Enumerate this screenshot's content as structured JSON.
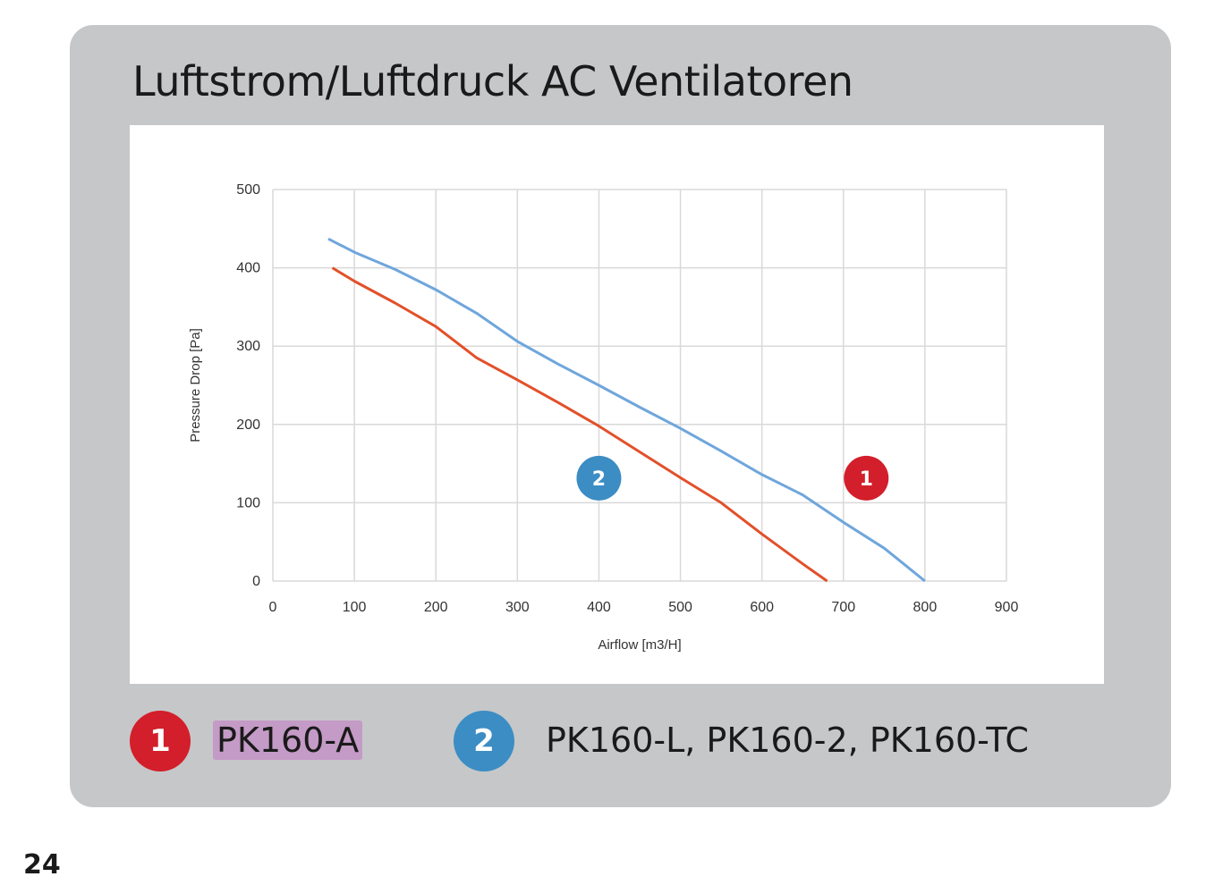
{
  "title": "Luftstrom/Luftdruck AC Ventilatoren",
  "page_number": "24",
  "colors": {
    "series1": "#e2502a",
    "series2": "#6fa6dc",
    "badge1": "#d21f2b",
    "badge2": "#3b8dc4",
    "highlight": "#c49ac6"
  },
  "legend": [
    {
      "badge": "1",
      "label": "PK160-A"
    },
    {
      "badge": "2",
      "label": "PK160-L, PK160-2, PK160-TC"
    }
  ],
  "chart_data": {
    "type": "line",
    "xlabel": "Airflow [m3/H]",
    "ylabel": "Pressure Drop [Pa]",
    "xlim": [
      0,
      900
    ],
    "ylim": [
      0,
      500
    ],
    "xticks": [
      "0",
      "100",
      "200",
      "300",
      "400",
      "500",
      "600",
      "700",
      "800",
      "900"
    ],
    "yticks": [
      "0",
      "100",
      "200",
      "300",
      "400",
      "500"
    ],
    "grid": true,
    "annotations": [
      {
        "text": "2",
        "x": 400,
        "y": 120
      },
      {
        "text": "1",
        "x": 728,
        "y": 120
      }
    ],
    "series": [
      {
        "name": "1",
        "x": [
          73,
          100,
          150,
          200,
          250,
          300,
          350,
          400,
          450,
          500,
          550,
          600,
          650,
          680
        ],
        "y": [
          400,
          383,
          355,
          325,
          285,
          257,
          228,
          198,
          165,
          132,
          100,
          60,
          22,
          0
        ]
      },
      {
        "name": "2",
        "x": [
          68,
          100,
          150,
          200,
          250,
          300,
          350,
          400,
          450,
          500,
          550,
          600,
          650,
          700,
          750,
          800
        ],
        "y": [
          437,
          420,
          398,
          372,
          342,
          306,
          277,
          250,
          222,
          195,
          166,
          136,
          110,
          75,
          42,
          0
        ]
      }
    ]
  }
}
